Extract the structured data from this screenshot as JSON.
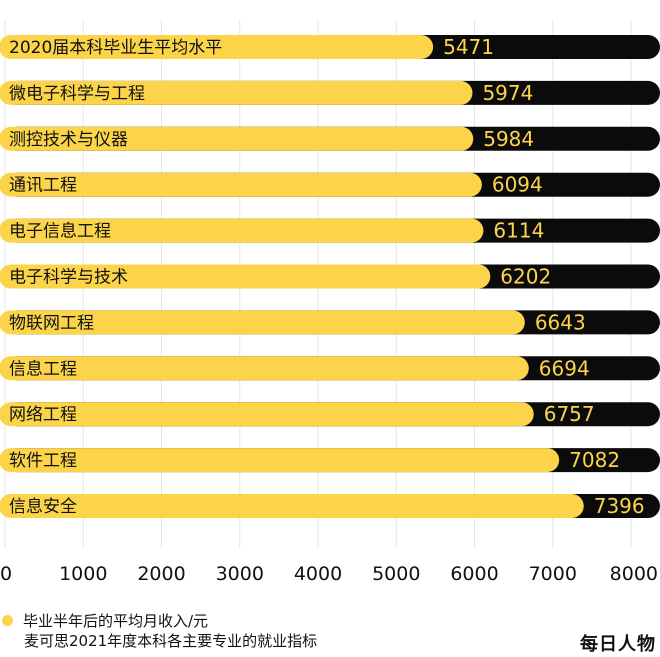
{
  "chart_data": {
    "type": "bar",
    "orientation": "horizontal",
    "categories": [
      "2020届本科毕业生平均水平",
      "微电子科学与工程",
      "测控技术与仪器",
      "通讯工程",
      "电子信息工程",
      "电子科学与技术",
      "物联网工程",
      "信息工程",
      "网络工程",
      "软件工程",
      "信息安全"
    ],
    "values": [
      5471,
      5974,
      5984,
      6094,
      6114,
      6202,
      6643,
      6694,
      6757,
      7082,
      7396
    ],
    "xlim": [
      0,
      8000
    ],
    "xticks": [
      0,
      1000,
      2000,
      3000,
      4000,
      5000,
      6000,
      7000,
      8000
    ],
    "bar_color": "#FBD44A",
    "track_color": "#0B0B0B",
    "value_label_color": "#FBD44A",
    "grid": true,
    "legend": "bottom-left",
    "series_label": "毕业半年后的平均月收入/元"
  },
  "footer": {
    "legend_label": "毕业半年后的平均月收入/元",
    "source": "麦可思2021年度本科各主要专业的就业指标",
    "brand": "每日人物"
  }
}
